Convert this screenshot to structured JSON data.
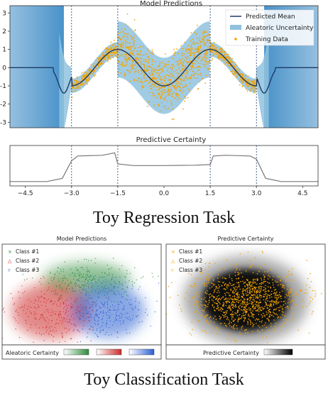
{
  "chart_data": [
    {
      "type": "line",
      "title": "Model Predictions",
      "yticks": [
        3,
        2,
        1,
        0,
        -1,
        -2,
        -3
      ],
      "ylim": [
        -3.3,
        3.4
      ],
      "xlim": [
        -5,
        5
      ],
      "dashed_lines_x": [
        -3.0,
        -1.5,
        1.5,
        3.0
      ],
      "legend": [
        "Predicted Mean",
        "Aleatoric Uncertainty",
        "Training Data"
      ],
      "legend_position": "top-right",
      "training_ranges": [
        [
          -3.0,
          -1.5
        ],
        [
          -1.5,
          1.5
        ],
        [
          1.5,
          3.0
        ]
      ],
      "colors": {
        "mean": "#1f3a66",
        "uncertainty": "#8fc2de",
        "data": "#f5a300"
      }
    },
    {
      "type": "line",
      "title": "Predictive Certainty",
      "xticks": [
        -4.5,
        -3.0,
        -1.5,
        0.0,
        1.5,
        3.0,
        4.5
      ],
      "xlim": [
        -5,
        5
      ],
      "dashed_lines_x": [
        -3.0,
        -1.5,
        1.5,
        3.0
      ],
      "x": [
        -5,
        -3.8,
        -3.3,
        -3.0,
        -2.8,
        -2.0,
        -1.6,
        -1.5,
        -1.0,
        0,
        1.0,
        1.5,
        1.6,
        2.0,
        2.8,
        3.0,
        3.3,
        3.8,
        5
      ],
      "values": [
        0.05,
        0.05,
        0.15,
        0.7,
        0.85,
        0.87,
        0.95,
        0.6,
        0.55,
        0.55,
        0.56,
        0.58,
        0.85,
        0.87,
        0.85,
        0.75,
        0.15,
        0.05,
        0.05
      ],
      "ylim": [
        0,
        1
      ],
      "colors": {
        "line": "#777777"
      }
    },
    {
      "type": "scatter",
      "title": "Model Predictions",
      "legend": [
        "Class #1",
        "Class #2",
        "Class #3"
      ],
      "legend_position": "top-left",
      "colorbar_label": "Aleatoric Certainty",
      "colors": {
        "class1": "#2e8b3a",
        "class2": "#cc2a2a",
        "class3": "#2a5ed0"
      }
    },
    {
      "type": "scatter",
      "title": "Predictive Certainty",
      "legend": [
        "Class #1",
        "Class #2",
        "Class #3"
      ],
      "legend_position": "top-left",
      "colorbar_label": "Predictive Certainty",
      "colors": {
        "points": "#f5a300"
      }
    }
  ],
  "captions": {
    "regression": "Toy Regression Task",
    "classification": "Toy Classification Task"
  }
}
